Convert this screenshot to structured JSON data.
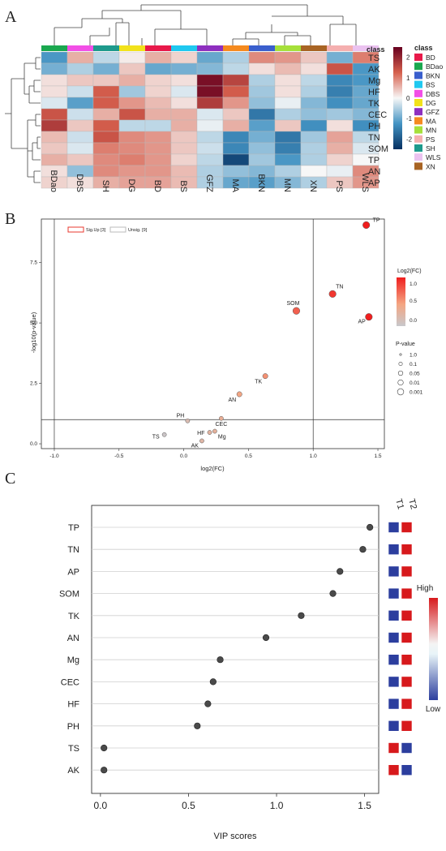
{
  "panels": {
    "a": "A",
    "b": "B",
    "c": "C"
  },
  "chart_data": [
    {
      "type": "heatmap",
      "columns": [
        "BDao",
        "DBS",
        "SH",
        "DG",
        "BD",
        "BS",
        "GFZ",
        "MA",
        "BKN",
        "MN",
        "XN",
        "PS",
        "WLS"
      ],
      "rows": [
        "TS",
        "AK",
        "Mg",
        "HF",
        "TK",
        "CEC",
        "PH",
        "TN",
        "SOM",
        "TP",
        "AN",
        "AP"
      ],
      "values": [
        [
          -1.2,
          0.6,
          -0.4,
          0.1,
          0.6,
          0.3,
          -1.0,
          -0.5,
          0.9,
          0.8,
          0.4,
          -0.9,
          1.0
        ],
        [
          -0.9,
          -0.5,
          -0.9,
          0.4,
          -1.0,
          -0.9,
          -0.8,
          -0.4,
          0.2,
          0.5,
          0.2,
          1.4,
          -1.2
        ],
        [
          0.2,
          0.4,
          0.4,
          0.6,
          0.3,
          0.2,
          2.3,
          1.6,
          -0.5,
          0.2,
          -0.4,
          -1.4,
          -1.2
        ],
        [
          0.2,
          -0.3,
          1.3,
          -0.6,
          0.3,
          -0.2,
          2.3,
          1.3,
          -0.6,
          0.2,
          -0.5,
          -1.5,
          -1.0
        ],
        [
          -0.2,
          -1.1,
          1.3,
          0.8,
          0.5,
          0.2,
          1.7,
          0.8,
          -0.7,
          -0.1,
          -0.8,
          -1.3,
          -1.0
        ],
        [
          1.4,
          -0.3,
          0.6,
          1.4,
          0.6,
          0.6,
          -0.2,
          0.4,
          -1.6,
          -0.5,
          -0.7,
          -0.6,
          -0.8
        ],
        [
          1.7,
          0.4,
          1.3,
          -0.4,
          -0.4,
          0.6,
          -0.1,
          0.6,
          -1.1,
          0.4,
          -1.3,
          0.2,
          -1.3
        ],
        [
          0.5,
          -0.3,
          1.4,
          0.9,
          0.8,
          0.4,
          -0.4,
          -1.4,
          -0.9,
          -1.6,
          -0.6,
          0.7,
          -0.4
        ],
        [
          0.4,
          -0.2,
          1.0,
          0.9,
          0.8,
          0.4,
          -0.3,
          -1.4,
          -0.7,
          -1.5,
          -0.5,
          0.6,
          -0.2
        ],
        [
          0.6,
          0.4,
          0.9,
          1.0,
          0.8,
          0.3,
          -0.4,
          -2.2,
          -0.6,
          -1.2,
          -0.5,
          0.3,
          0.0
        ],
        [
          0.2,
          -0.7,
          0.9,
          0.8,
          0.8,
          0.5,
          -0.5,
          -0.7,
          -0.8,
          -0.5,
          0.0,
          -0.1,
          0.9
        ],
        [
          0.3,
          0.2,
          0.6,
          0.7,
          0.7,
          0.5,
          -0.5,
          -1.0,
          -1.1,
          -0.8,
          -0.5,
          0.4,
          0.8
        ]
      ],
      "class_row_label": "class",
      "colorbar_ticks": [
        2,
        1,
        0,
        -1,
        -2
      ],
      "legend_title": "class",
      "legend": [
        {
          "name": "BD",
          "color": "#E8194A"
        },
        {
          "name": "BDao",
          "color": "#1AA84F"
        },
        {
          "name": "BKN",
          "color": "#3A5FCD"
        },
        {
          "name": "BS",
          "color": "#1FC8F0"
        },
        {
          "name": "DBS",
          "color": "#F24FE6"
        },
        {
          "name": "DG",
          "color": "#F2E21B"
        },
        {
          "name": "GFZ",
          "color": "#8E2FBF"
        },
        {
          "name": "MA",
          "color": "#F58A1F"
        },
        {
          "name": "MN",
          "color": "#A6E03A"
        },
        {
          "name": "PS",
          "color": "#F5AFAF"
        },
        {
          "name": "SH",
          "color": "#1E9A8C"
        },
        {
          "name": "WLS",
          "color": "#EBC2F0"
        },
        {
          "name": "XN",
          "color": "#A86424"
        }
      ]
    },
    {
      "type": "scatter",
      "xlabel": "log2(FC)",
      "ylabel": "-log10(p-value)",
      "xlim": [
        -1.1,
        1.55
      ],
      "ylim": [
        -0.2,
        9.3
      ],
      "xticks": [
        -1.0,
        -0.5,
        0.0,
        0.5,
        1.0,
        1.5
      ],
      "xtick_labels": [
        "-1.0",
        "-0.5",
        "0.0",
        "0.5",
        "1.0",
        "1.5"
      ],
      "yticks": [
        0.0,
        2.5,
        5.0,
        7.5
      ],
      "ytick_labels": [
        "0.0",
        "2.5",
        "5.0",
        "7.5"
      ],
      "vlines": [
        -1.0,
        1.0
      ],
      "hline": 1.0,
      "points": [
        {
          "label": "TP",
          "x": 1.41,
          "y": 9.05,
          "fc": 1.4
        },
        {
          "label": "AP",
          "x": 1.43,
          "y": 5.25,
          "fc": 1.4
        },
        {
          "label": "TN",
          "x": 1.15,
          "y": 6.2,
          "fc": 1.15
        },
        {
          "label": "SOM",
          "x": 0.87,
          "y": 5.5,
          "fc": 0.9
        },
        {
          "label": "TK",
          "x": 0.63,
          "y": 2.8,
          "fc": 0.6
        },
        {
          "label": "AN",
          "x": 0.43,
          "y": 2.05,
          "fc": 0.45
        },
        {
          "label": "CEC",
          "x": 0.29,
          "y": 1.05,
          "fc": 0.3
        },
        {
          "label": "Mg",
          "x": 0.24,
          "y": 0.52,
          "fc": 0.25
        },
        {
          "label": "HF",
          "x": 0.2,
          "y": 0.47,
          "fc": 0.2
        },
        {
          "label": "PH",
          "x": 0.03,
          "y": 0.95,
          "fc": 0.05
        },
        {
          "label": "AK",
          "x": 0.14,
          "y": 0.12,
          "fc": 0.15
        },
        {
          "label": "TS",
          "x": -0.15,
          "y": 0.38,
          "fc": -0.15
        }
      ],
      "legend_items": [
        "Sig.Up [3]",
        "Unsig. [9]"
      ],
      "colorbar_title": "Log2(FC)",
      "colorbar_ticks": [
        "1.0",
        "0.5",
        "0.0"
      ],
      "size_legend_title": "P-value",
      "size_legend_items": [
        "1.0",
        "0.1",
        "0.05",
        "0.01",
        "0.001"
      ]
    },
    {
      "type": "dot",
      "xlabel": "VIP scores",
      "xlim": [
        -0.05,
        1.58
      ],
      "xticks": [
        0,
        0.5,
        1.0,
        1.5
      ],
      "xtick_labels": [
        "0.0",
        "0.5",
        "1.0",
        "1.5"
      ],
      "categories": [
        "TP",
        "TN",
        "AP",
        "SOM",
        "TK",
        "AN",
        "Mg",
        "CEC",
        "HF",
        "PH",
        "TS",
        "AK"
      ],
      "values": [
        1.53,
        1.49,
        1.36,
        1.32,
        1.14,
        0.94,
        0.68,
        0.64,
        0.61,
        0.55,
        0.02,
        0.02
      ],
      "groups": [
        "T1",
        "T2"
      ],
      "group_levels": [
        [
          "low",
          "high"
        ],
        [
          "low",
          "high"
        ],
        [
          "low",
          "high"
        ],
        [
          "low",
          "high"
        ],
        [
          "low",
          "high"
        ],
        [
          "low",
          "high"
        ],
        [
          "low",
          "high"
        ],
        [
          "low",
          "high"
        ],
        [
          "low",
          "high"
        ],
        [
          "low",
          "high"
        ],
        [
          "high",
          "low"
        ],
        [
          "high",
          "low"
        ]
      ],
      "colorbar_high": "High",
      "colorbar_low": "Low",
      "high_color": "#D7191C",
      "low_color": "#2C3E9E"
    }
  ]
}
